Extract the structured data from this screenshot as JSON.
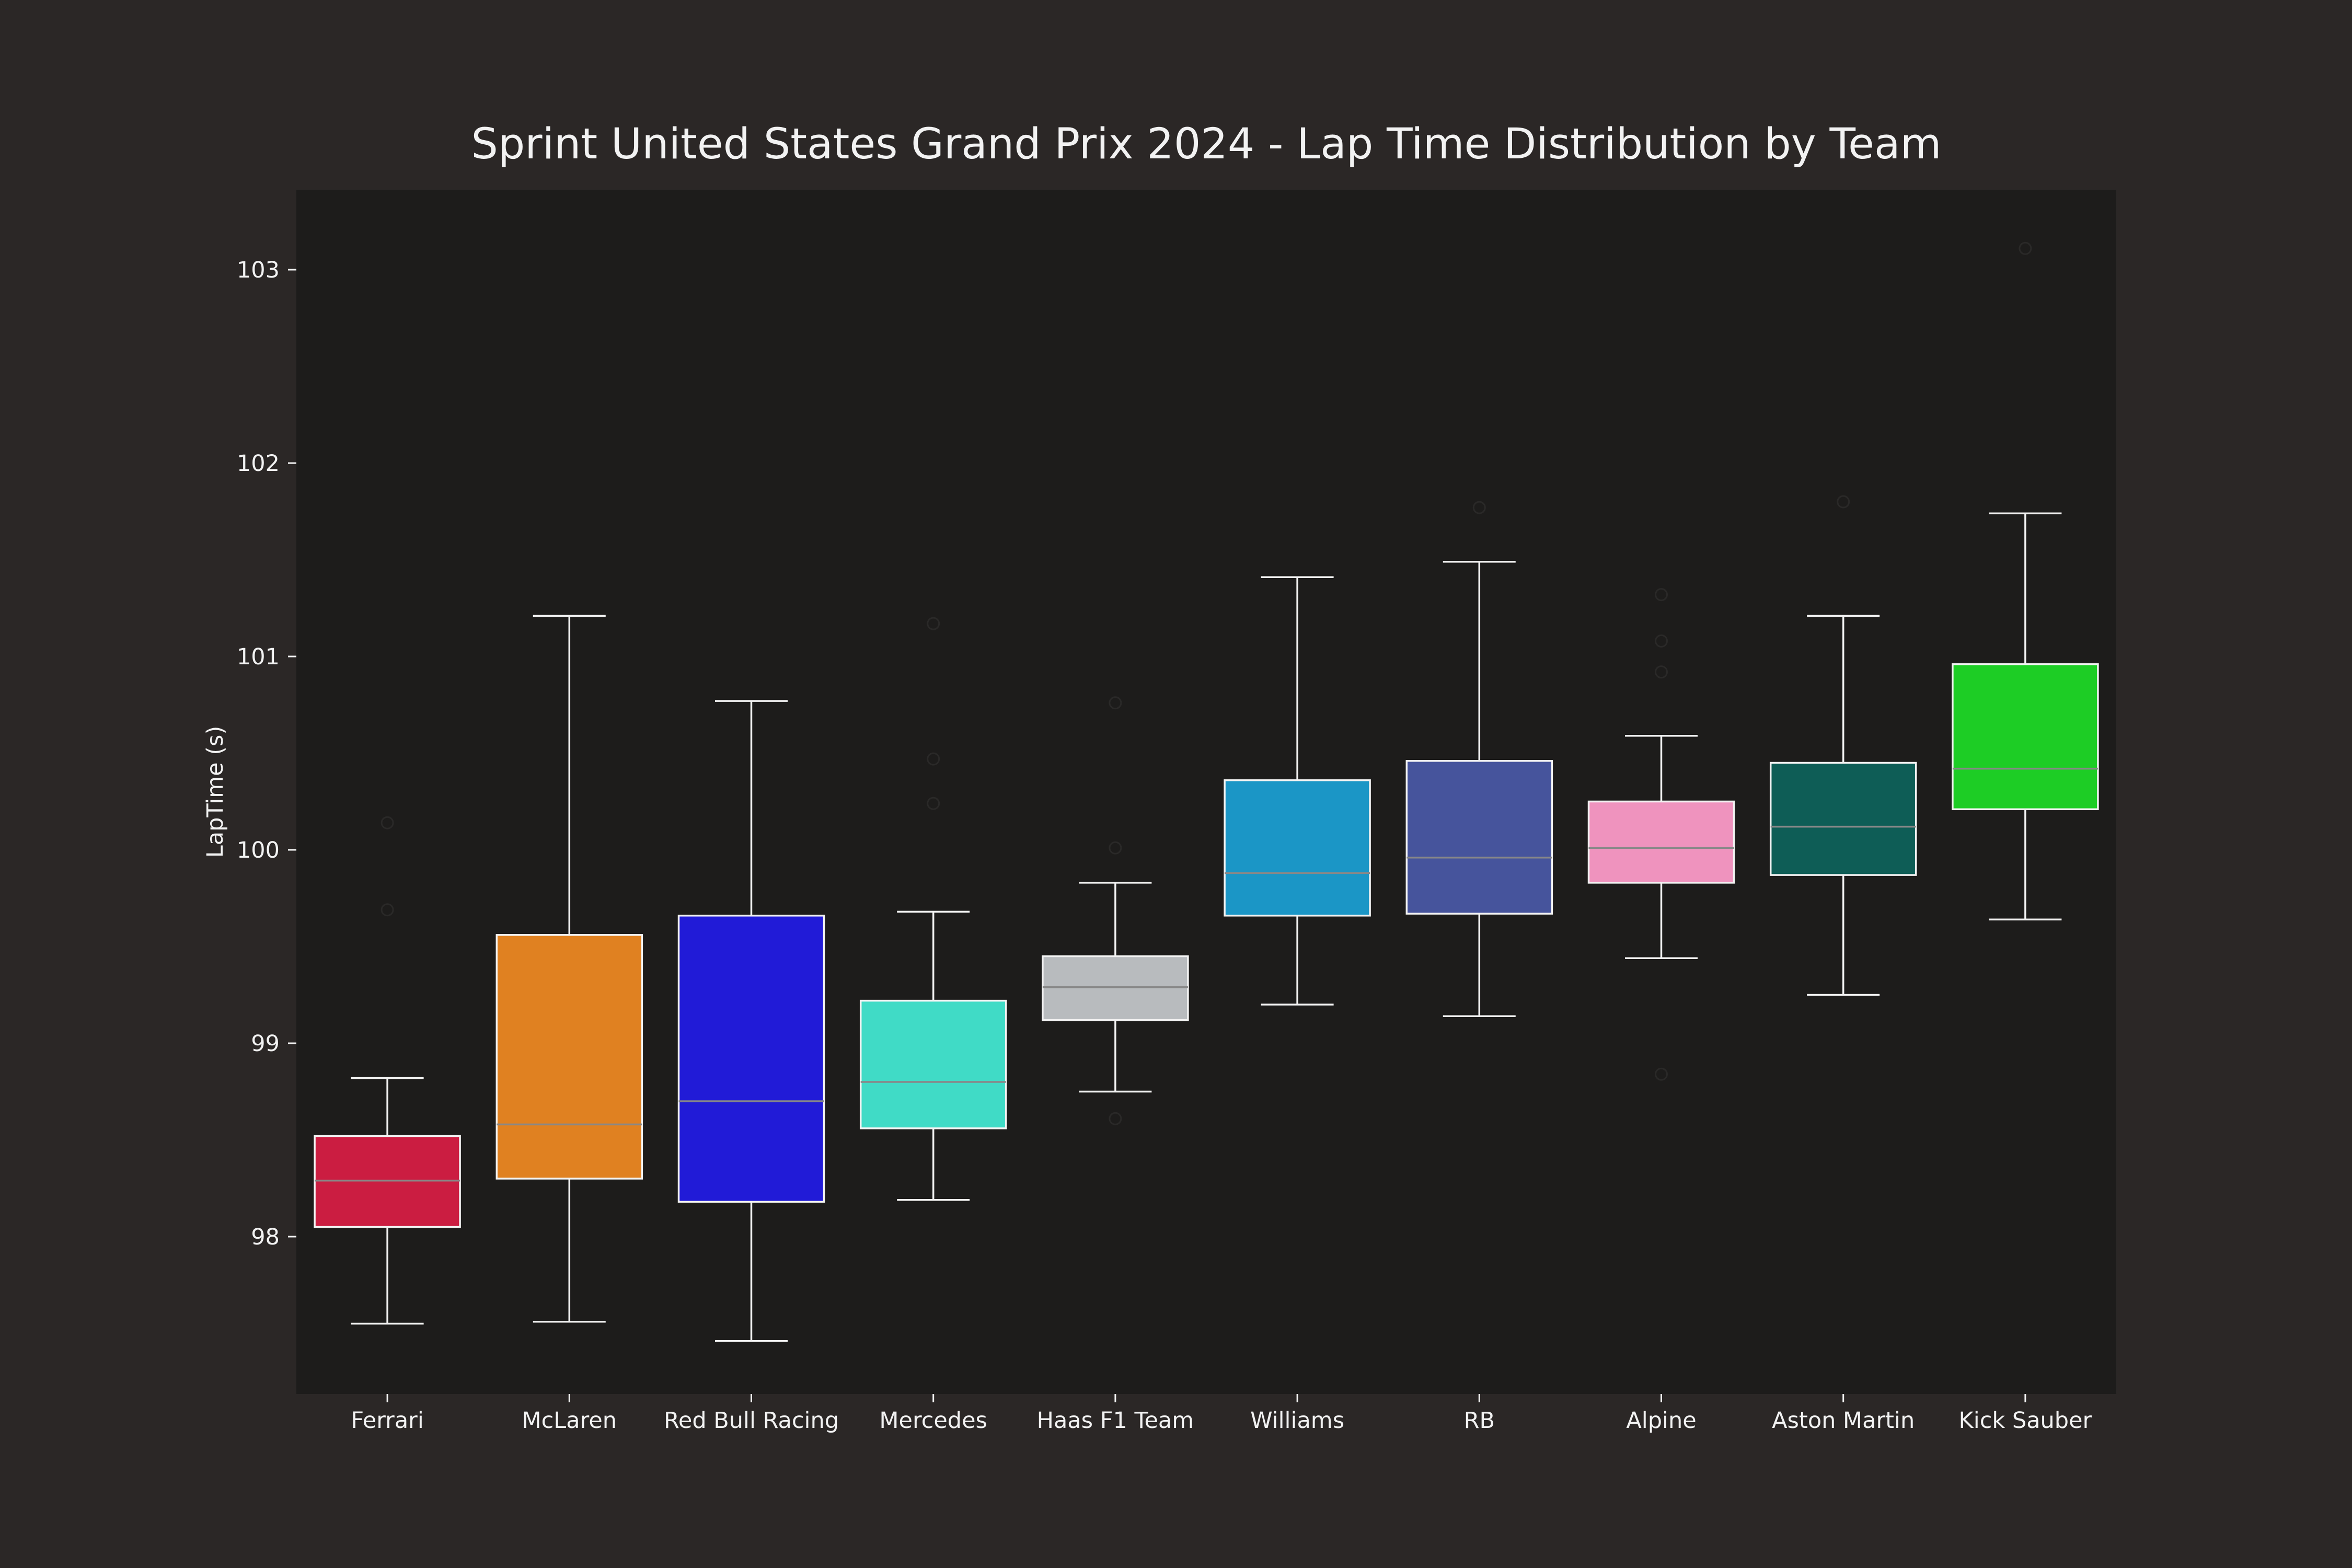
{
  "chart_data": {
    "type": "box",
    "title": "Sprint United States Grand Prix 2024 - Lap Time Distribution by Team",
    "xlabel": "",
    "ylabel": "LapTime (s)",
    "ylim": [
      97.2,
      103.4
    ],
    "yticks": [
      98,
      99,
      100,
      101,
      102,
      103
    ],
    "grid": false,
    "categories": [
      "Ferrari",
      "McLaren",
      "Red Bull Racing",
      "Mercedes",
      "Haas F1 Team",
      "Williams",
      "RB",
      "Alpine",
      "Aston Martin",
      "Kick Sauber"
    ],
    "boxes": [
      {
        "team": "Ferrari",
        "color": "#cb1d41",
        "whisker_low": 97.55,
        "q1": 98.05,
        "median": 98.29,
        "q3": 98.52,
        "whisker_high": 98.82,
        "outliers": [
          99.69,
          100.14
        ]
      },
      {
        "team": "McLaren",
        "color": "#e08121",
        "whisker_low": 97.56,
        "q1": 98.3,
        "median": 98.58,
        "q3": 99.56,
        "whisker_high": 101.21,
        "outliers": []
      },
      {
        "team": "Red Bull Racing",
        "color": "#211bd7",
        "whisker_low": 97.46,
        "q1": 98.18,
        "median": 98.7,
        "q3": 99.66,
        "whisker_high": 100.77,
        "outliers": []
      },
      {
        "team": "Mercedes",
        "color": "#40dbc6",
        "whisker_low": 98.19,
        "q1": 98.56,
        "median": 98.8,
        "q3": 99.22,
        "whisker_high": 99.68,
        "outliers": [
          100.24,
          100.47,
          101.17
        ]
      },
      {
        "team": "Haas F1 Team",
        "color": "#b8bbbe",
        "whisker_low": 98.75,
        "q1": 99.12,
        "median": 99.29,
        "q3": 99.45,
        "whisker_high": 99.83,
        "outliers": [
          98.61,
          100.01,
          100.76
        ]
      },
      {
        "team": "Williams",
        "color": "#1b96c6",
        "whisker_low": 99.2,
        "q1": 99.66,
        "median": 99.88,
        "q3": 100.36,
        "whisker_high": 101.41,
        "outliers": []
      },
      {
        "team": "RB",
        "color": "#46549c",
        "whisker_low": 99.14,
        "q1": 99.67,
        "median": 99.96,
        "q3": 100.46,
        "whisker_high": 101.49,
        "outliers": [
          101.77
        ]
      },
      {
        "team": "Alpine",
        "color": "#ef93be",
        "whisker_low": 99.44,
        "q1": 99.83,
        "median": 100.01,
        "q3": 100.25,
        "whisker_high": 100.59,
        "outliers": [
          98.84,
          100.92,
          101.08,
          101.32
        ]
      },
      {
        "team": "Aston Martin",
        "color": "#0e5d56",
        "whisker_low": 99.25,
        "q1": 99.87,
        "median": 100.12,
        "q3": 100.45,
        "whisker_high": 101.21,
        "outliers": [
          101.8
        ]
      },
      {
        "team": "Kick Sauber",
        "color": "#1dcd25",
        "whisker_low": 99.64,
        "q1": 100.21,
        "median": 100.42,
        "q3": 100.96,
        "whisker_high": 101.74,
        "outliers": [
          103.11
        ]
      }
    ],
    "colors": {
      "figure_background": "#2b2726",
      "plot_background": "#1d1c1b",
      "box_edge": "#f2f2f2",
      "median_line": "#888888",
      "text": "#f2f2f2"
    }
  }
}
